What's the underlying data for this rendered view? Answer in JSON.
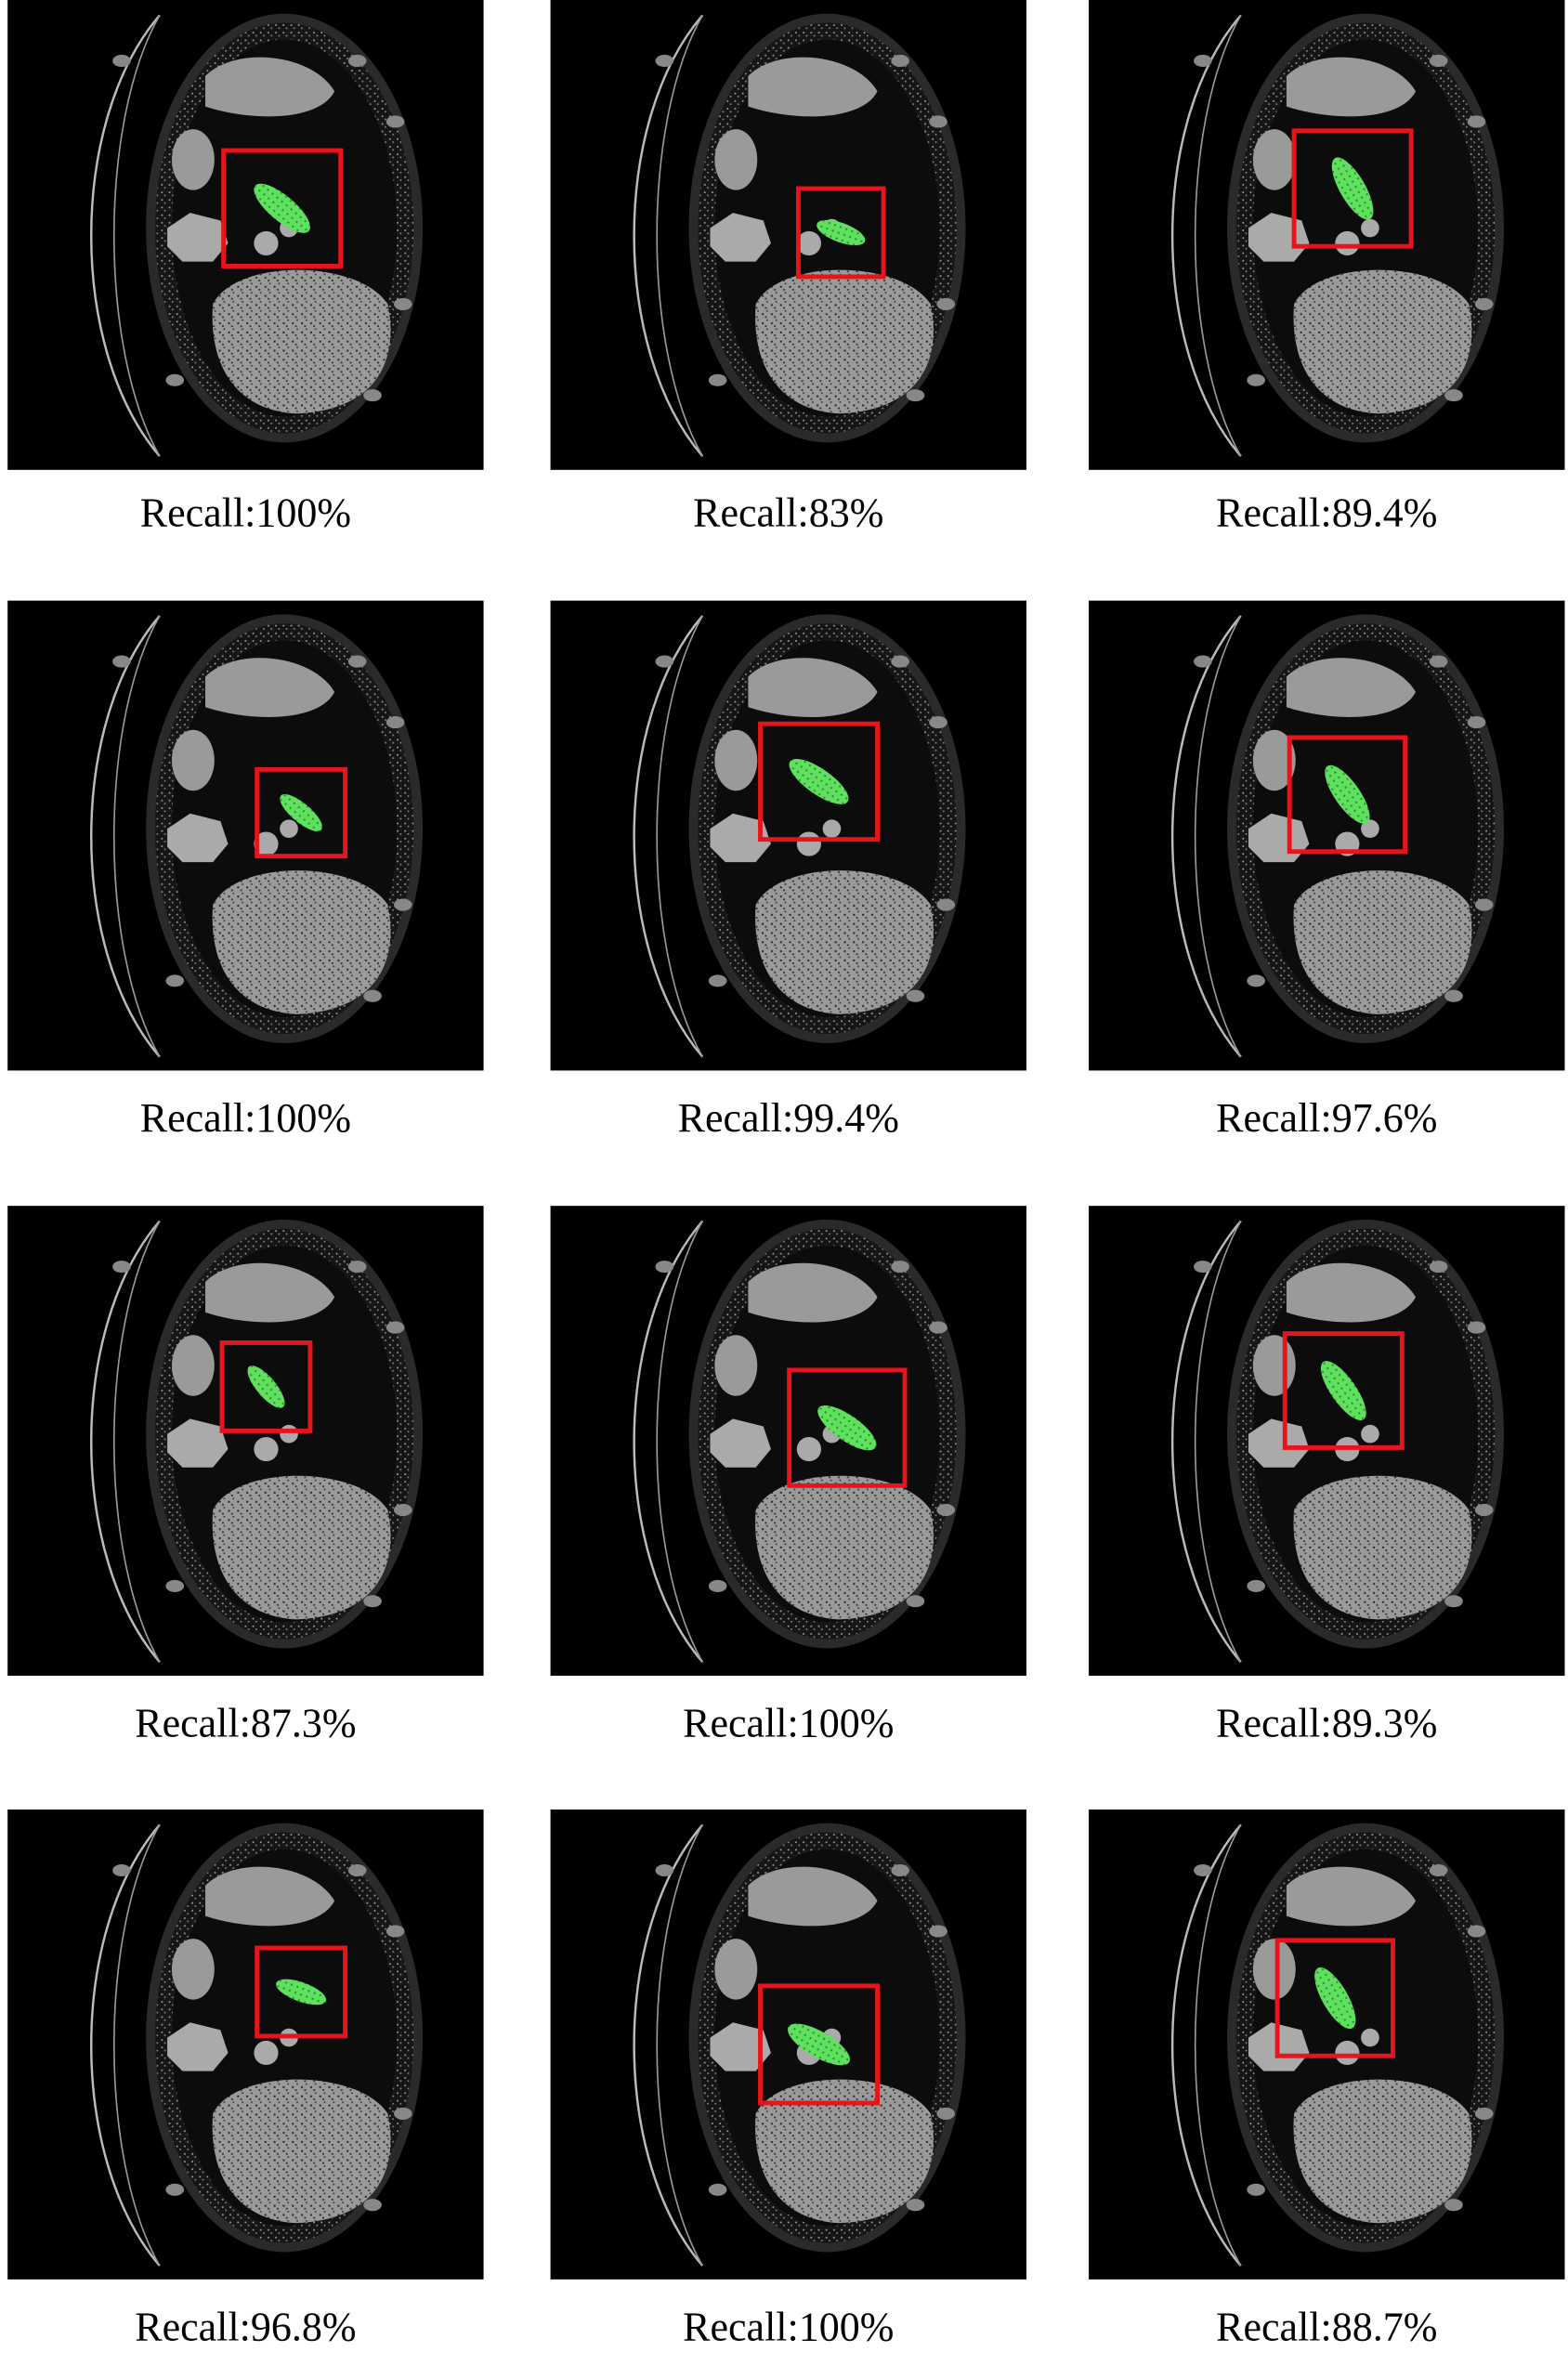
{
  "panels": [
    {
      "label": "Recall:100%"
    },
    {
      "label": "Recall:83%"
    },
    {
      "label": "Recall:89.4%"
    },
    {
      "label": "Recall:100%"
    },
    {
      "label": "Recall:99.4%"
    },
    {
      "label": "Recall:97.6%"
    },
    {
      "label": "Recall:87.3%"
    },
    {
      "label": "Recall:100%"
    },
    {
      "label": "Recall:89.3%"
    },
    {
      "label": "Recall:96.8%"
    },
    {
      "label": "Recall:100%"
    },
    {
      "label": "Recall:88.7%"
    }
  ]
}
